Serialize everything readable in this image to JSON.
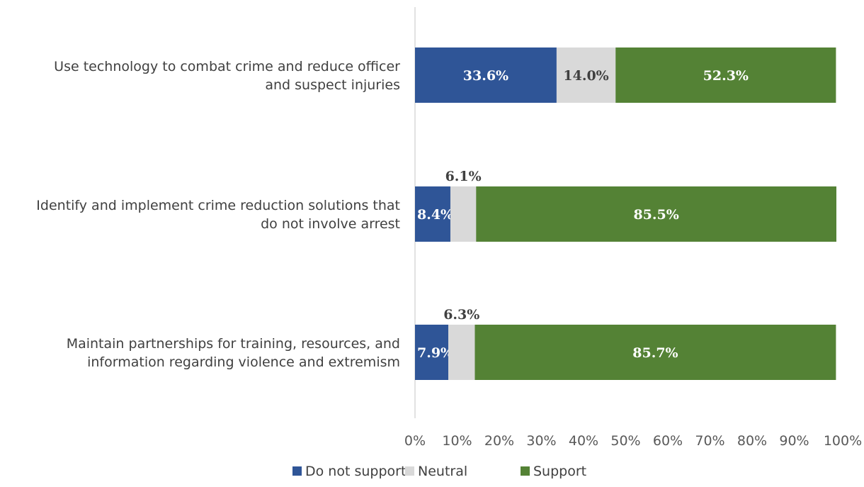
{
  "chart_data": {
    "type": "bar",
    "orientation": "horizontal",
    "stacked": true,
    "categories": [
      [
        "Use technology to combat crime and reduce officer",
        "and suspect injuries"
      ],
      [
        "Identify and implement crime reduction solutions that",
        "do not involve arrest"
      ],
      [
        "Maintain partnerships for training, resources, and",
        "information regarding violence and extremism"
      ]
    ],
    "series": [
      {
        "name": "Do not support",
        "color": "#2f5597",
        "label_color": "#ffffff",
        "values": [
          33.6,
          8.4,
          7.9
        ],
        "labels": [
          "33.6%",
          "8.4%",
          "7.9%"
        ]
      },
      {
        "name": "Neutral",
        "color": "#d9d9d9",
        "label_color": "#404040",
        "values": [
          14.0,
          6.1,
          6.3
        ],
        "labels": [
          "14.0%",
          "6.1%",
          "6.3%"
        ]
      },
      {
        "name": "Support",
        "color": "#548235",
        "label_color": "#ffffff",
        "values": [
          52.3,
          85.5,
          85.7
        ],
        "labels": [
          "52.3%",
          "85.5%",
          "85.7%"
        ]
      }
    ],
    "xlim": [
      0,
      100
    ],
    "xticks": [
      "0%",
      "10%",
      "20%",
      "30%",
      "40%",
      "50%",
      "60%",
      "70%",
      "80%",
      "90%",
      "100%"
    ],
    "grid": false,
    "legend": "bottom"
  }
}
